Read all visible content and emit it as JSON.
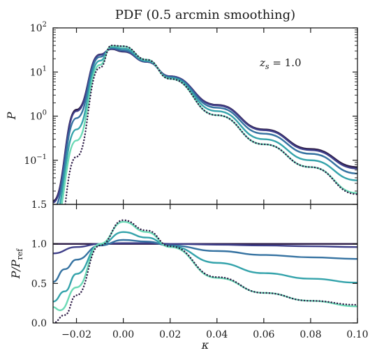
{
  "chart_data": [
    {
      "type": "line",
      "title": "PDF (0.5 arcmin smoothing)",
      "xlabel": "",
      "ylabel": "P",
      "yscale": "log",
      "xlim": [
        -0.03,
        0.1
      ],
      "ylim": [
        0.01,
        100
      ],
      "annotation": "z_s = 1.0",
      "y_tick_labels": [
        "10^2",
        "10^1",
        "10^0",
        "10^-1"
      ],
      "series": [
        {
          "color": "#2b1a45",
          "style": "solid",
          "x": [
            -0.03,
            -0.02,
            -0.01,
            -0.005,
            0.0,
            0.01,
            0.02,
            0.04,
            0.06,
            0.08,
            0.1
          ],
          "values": [
            0.012,
            1.4,
            25.0,
            33.0,
            29.0,
            17.0,
            8.0,
            1.8,
            0.5,
            0.18,
            0.07
          ]
        },
        {
          "color": "#3f3f8a",
          "style": "solid",
          "x": [
            -0.03,
            -0.02,
            -0.01,
            -0.005,
            0.0,
            0.01,
            0.02,
            0.04,
            0.06,
            0.08,
            0.1
          ],
          "values": [
            0.011,
            1.3,
            24.5,
            33.5,
            29.5,
            17.0,
            8.0,
            1.75,
            0.48,
            0.17,
            0.065
          ]
        },
        {
          "color": "#3572a1",
          "style": "solid",
          "x": [
            -0.03,
            -0.02,
            -0.01,
            -0.005,
            0.0,
            0.01,
            0.02,
            0.04,
            0.06,
            0.08,
            0.1
          ],
          "values": [
            0.008,
            0.9,
            22.0,
            35.0,
            31.0,
            17.5,
            7.7,
            1.55,
            0.4,
            0.14,
            0.05
          ]
        },
        {
          "color": "#34a3ab",
          "style": "solid",
          "x": [
            -0.03,
            -0.02,
            -0.01,
            -0.005,
            0.0,
            0.01,
            0.02,
            0.04,
            0.06,
            0.08,
            0.1
          ],
          "values": [
            0.005,
            0.5,
            18.0,
            37.0,
            34.0,
            18.0,
            7.3,
            1.3,
            0.3,
            0.1,
            0.035
          ]
        },
        {
          "color": "#6ad9b5",
          "style": "solid",
          "x": [
            -0.03,
            -0.02,
            -0.01,
            -0.005,
            0.0,
            0.01,
            0.02,
            0.04,
            0.06,
            0.08,
            0.1
          ],
          "values": [
            0.003,
            0.28,
            14.5,
            39.0,
            38.0,
            19.0,
            7.0,
            1.05,
            0.23,
            0.07,
            0.018
          ]
        },
        {
          "color": "#2b1a45",
          "style": "dotted",
          "x": [
            -0.03,
            -0.02,
            -0.01,
            -0.005,
            0.0,
            0.01,
            0.02,
            0.04,
            0.06,
            0.08,
            0.1
          ],
          "values": [
            0.0005,
            0.12,
            12.5,
            40.0,
            38.5,
            19.0,
            7.0,
            1.05,
            0.23,
            0.07,
            0.017
          ]
        }
      ]
    },
    {
      "type": "line",
      "xlabel": "κ",
      "ylabel": "P/P_ref",
      "xlim": [
        -0.03,
        0.1
      ],
      "ylim": [
        0.0,
        1.5
      ],
      "y_tick_labels": [
        "1.5",
        "1.0",
        "0.5",
        "0.0"
      ],
      "x_tick_labels": [
        "−0.02",
        "0.00",
        "0.02",
        "0.04",
        "0.06",
        "0.08",
        "0.10"
      ],
      "series": [
        {
          "color": "#2b1a45",
          "style": "solid",
          "x": [
            -0.03,
            0.0,
            0.05,
            0.1
          ],
          "values": [
            1.0,
            1.0,
            1.0,
            1.0
          ]
        },
        {
          "color": "#3f3f8a",
          "style": "solid",
          "x": [
            -0.03,
            -0.02,
            -0.01,
            0.0,
            0.01,
            0.02,
            0.04,
            0.06,
            0.08,
            0.1
          ],
          "values": [
            0.88,
            0.96,
            1.0,
            1.01,
            1.01,
            1.0,
            0.99,
            0.98,
            0.97,
            0.96
          ]
        },
        {
          "color": "#3572a1",
          "style": "solid",
          "x": [
            -0.03,
            -0.025,
            -0.02,
            -0.01,
            0.0,
            0.01,
            0.02,
            0.04,
            0.06,
            0.08,
            0.1
          ],
          "values": [
            0.52,
            0.68,
            0.8,
            0.98,
            1.05,
            1.03,
            0.98,
            0.91,
            0.86,
            0.83,
            0.81
          ]
        },
        {
          "color": "#34a3ab",
          "style": "solid",
          "x": [
            -0.03,
            -0.025,
            -0.02,
            -0.01,
            0.0,
            0.01,
            0.02,
            0.04,
            0.06,
            0.08,
            0.1
          ],
          "values": [
            0.27,
            0.4,
            0.62,
            0.99,
            1.15,
            1.08,
            0.97,
            0.76,
            0.63,
            0.56,
            0.51
          ]
        },
        {
          "color": "#6ad9b5",
          "style": "solid",
          "x": [
            -0.03,
            -0.027,
            -0.02,
            -0.01,
            0.0,
            0.01,
            0.02,
            0.04,
            0.06,
            0.08,
            0.1
          ],
          "values": [
            0.2,
            0.16,
            0.45,
            1.0,
            1.28,
            1.15,
            0.96,
            0.57,
            0.38,
            0.28,
            0.21
          ]
        },
        {
          "color": "#2b1a45",
          "style": "dotted",
          "x": [
            -0.03,
            -0.025,
            -0.02,
            -0.01,
            0.0,
            0.01,
            0.02,
            0.04,
            0.06,
            0.08,
            0.1
          ],
          "values": [
            0.0,
            0.1,
            0.35,
            0.98,
            1.3,
            1.17,
            0.97,
            0.58,
            0.38,
            0.28,
            0.23
          ]
        }
      ]
    }
  ]
}
